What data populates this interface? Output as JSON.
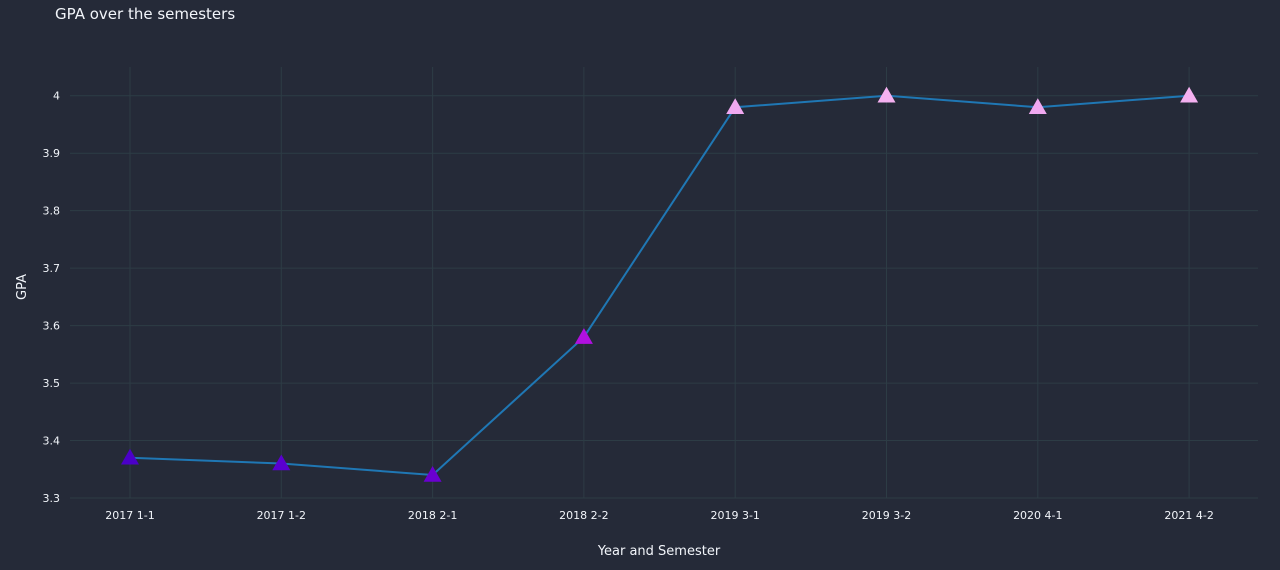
{
  "chart_data": {
    "type": "line",
    "title": "GPA over the semesters",
    "xlabel": "Year and Semester",
    "ylabel": "GPA",
    "categories": [
      "2017 1-1",
      "2017 1-2",
      "2018 2-1",
      "2018 2-2",
      "2019 3-1",
      "2019 3-2",
      "2020 4-1",
      "2021 4-2"
    ],
    "series": [
      {
        "values": [
          3.37,
          3.36,
          3.34,
          3.58,
          3.98,
          4.0,
          3.98,
          4.0
        ]
      }
    ],
    "ylim": [
      3.3,
      4.05
    ],
    "yticks": [
      3.3,
      3.4,
      3.5,
      3.6,
      3.7,
      3.8,
      3.9,
      4.0
    ],
    "ytick_labels": [
      "3.3",
      "3.4",
      "3.5",
      "3.6",
      "3.7",
      "3.8",
      "3.9",
      "4"
    ],
    "grid": true,
    "marker": "triangle-up",
    "colors": {
      "background": "#252a38",
      "grid": "#2d3c45",
      "line": "#1f77b4",
      "text": "#f2f5fa",
      "marker_scale": [
        "#4b00c8",
        "#5a00d0",
        "#6a00d0",
        "#b010e0",
        "#f0a8f0",
        "#f4b0f0",
        "#f0a8f0",
        "#f4b0f0"
      ]
    }
  }
}
